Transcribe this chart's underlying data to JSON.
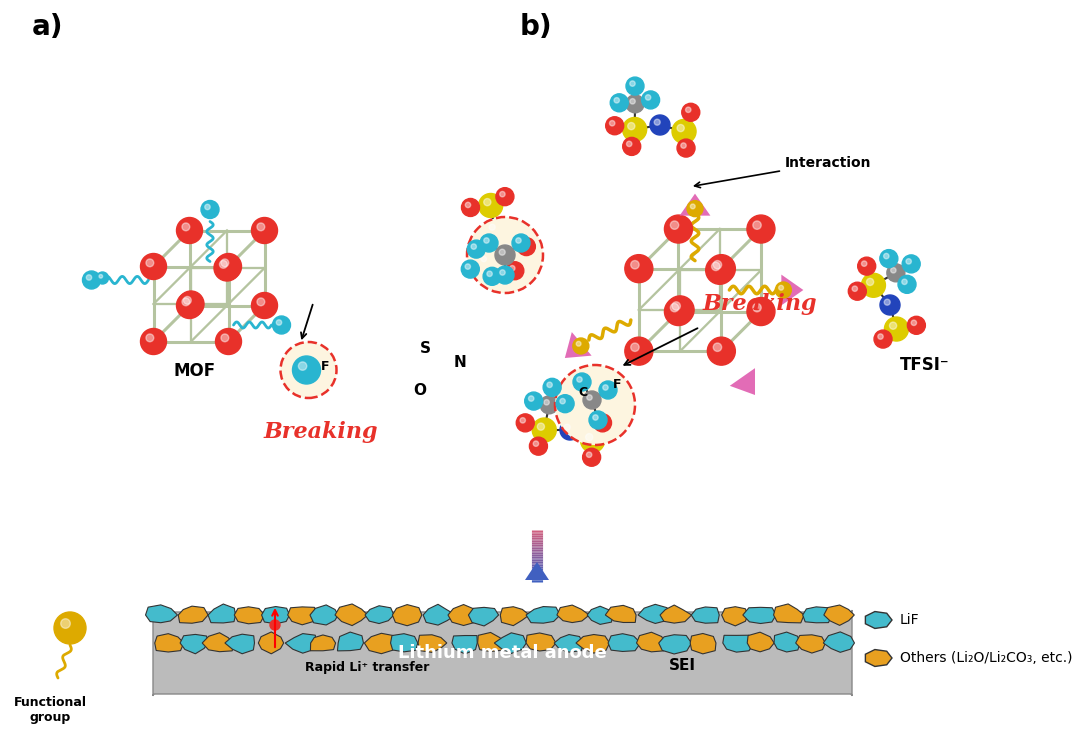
{
  "fig_width": 10.55,
  "fig_height": 7.06,
  "bg_color": "#ffffff",
  "label_a": "a)",
  "label_b": "b)",
  "mof_label": "MOF",
  "breaking_text": "Breaking",
  "interaction_text": "Interaction",
  "tfsi_text": "TFSI⁻",
  "rapid_li_text": "Rapid Li⁺ transfer",
  "sei_text": "SEI",
  "functional_group_text": "Functional\ngroup",
  "lithium_anode_text": "Lithium metal anode",
  "lif_text": "LiF",
  "others_text": "Others (Li₂O/Li₂CO₃, etc.)",
  "red_color": "#e8312a",
  "cyan_color": "#29b5d0",
  "yellow_color": "#ddaa00",
  "green_frame": "#b5c4a0",
  "pink_color": "#e060b0",
  "gray_color": "#888888",
  "blue_color": "#2244bb",
  "lif_cyan": "#44bbcc",
  "others_orange": "#e8a020",
  "dashed_circle_color": "#e8312a",
  "dashed_circle_fill": "#fdf5e0"
}
